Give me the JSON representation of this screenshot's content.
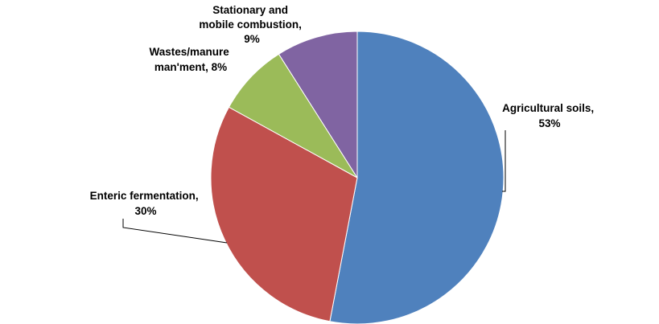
{
  "chart_data": {
    "type": "pie",
    "title": "",
    "slices": [
      {
        "label_lines": [
          "Agricultural  soils,",
          "53%"
        ],
        "value": 53,
        "color": "#4F81BD"
      },
      {
        "label_lines": [
          "Enteric fermentation,",
          "30%"
        ],
        "value": 30,
        "color": "#C0504D"
      },
      {
        "label_lines": [
          "Wastes/manure",
          "man'ment, 8%"
        ],
        "value": 8,
        "color": "#9BBB59"
      },
      {
        "label_lines": [
          "Stationary and",
          "mobile combustion,",
          "9%"
        ],
        "value": 9,
        "color": "#8064A2"
      }
    ],
    "legend": "none"
  }
}
